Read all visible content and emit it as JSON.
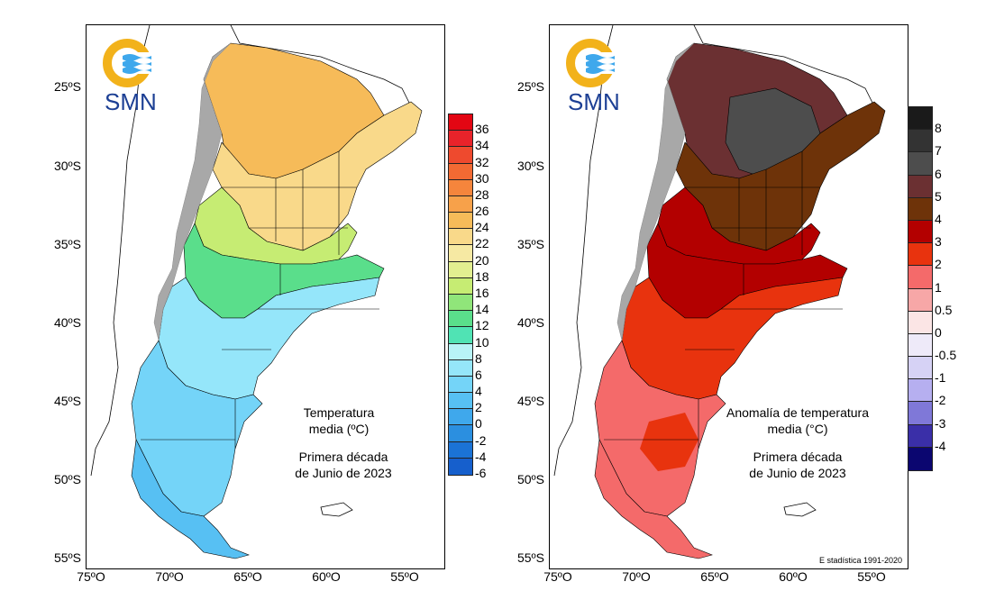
{
  "left_map": {
    "logo_text": "SMN",
    "title_line1": "Temperatura",
    "title_line2": "media (ºC)",
    "subtitle_line1": "Primera década",
    "subtitle_line2": "de Junio de 2023",
    "y_ticks": [
      "25ºS",
      "30ºS",
      "35ºS",
      "40ºS",
      "45ºS",
      "50ºS",
      "55ºS"
    ],
    "x_ticks": [
      "75ºO",
      "70ºO",
      "65ºO",
      "60ºO",
      "55ºO"
    ],
    "legend": {
      "labels": [
        "36",
        "34",
        "32",
        "30",
        "28",
        "26",
        "24",
        "22",
        "20",
        "18",
        "16",
        "14",
        "12",
        "10",
        "8",
        "6",
        "4",
        "2",
        "0",
        "-2",
        "-4",
        "-6"
      ],
      "colors": [
        "#e30613",
        "#e8232a",
        "#ee4a2e",
        "#f26a33",
        "#f5853c",
        "#f7a14a",
        "#f6bb59",
        "#f9d98a",
        "#f6e9a3",
        "#e2ef90",
        "#c6ec73",
        "#90e57a",
        "#5ade8b",
        "#50e3b4",
        "#b8f3f7",
        "#95e6fa",
        "#74d4f8",
        "#57c0f3",
        "#3fa8ec",
        "#2b8fe0",
        "#1b73d6",
        "#165fcc"
      ]
    }
  },
  "right_map": {
    "logo_text": "SMN",
    "title_line1": "Anomalía de temperatura",
    "title_line2": "media (°C)",
    "subtitle_line1": "Primera década",
    "subtitle_line2": "de Junio de 2023",
    "credit": "E stadística 1991-2020",
    "y_ticks": [
      "25ºS",
      "30ºS",
      "35ºS",
      "40ºS",
      "45ºS",
      "50ºS",
      "55ºS"
    ],
    "x_ticks": [
      "75ºO",
      "70ºO",
      "65ºO",
      "60ºO",
      "55ºO"
    ],
    "legend": {
      "labels": [
        "8",
        "7",
        "6",
        "5",
        "4",
        "3",
        "2",
        "1",
        "0.5",
        "0",
        "-0.5",
        "-1",
        "-2",
        "-3",
        "-4"
      ],
      "colors": [
        "#1a1a1a",
        "#333333",
        "#4d4d4d",
        "#6b3032",
        "#6e3309",
        "#b30000",
        "#e8330e",
        "#f46a6a",
        "#f7a7a7",
        "#fbe5e5",
        "#eeeaf9",
        "#d6d2f5",
        "#b6aff0",
        "#7f78d8",
        "#3a2fa8",
        "#0b0670"
      ]
    }
  }
}
